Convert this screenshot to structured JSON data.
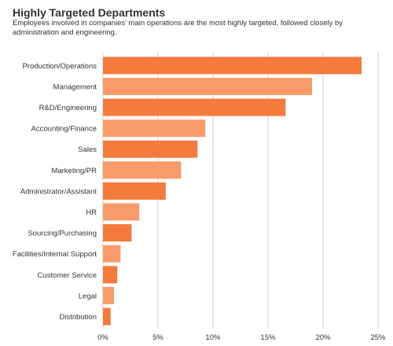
{
  "header": {
    "title": "Highly Targeted Departments",
    "subtitle": "Employees involved in companies' main operations are the most highly targeted, followed closely by administration and engineering."
  },
  "chart_data": {
    "type": "bar",
    "orientation": "horizontal",
    "categories": [
      "Production/Operations",
      "Management",
      "R&D/Engineering",
      "Accounting/Finance",
      "Sales",
      "Marketing/PR",
      "Administrator/Assistant",
      "HR",
      "Sourcing/Purchasing",
      "Facilities/Internal Support",
      "Customer Service",
      "Legal",
      "Distribution"
    ],
    "values": [
      23.5,
      19.0,
      16.6,
      9.3,
      8.6,
      7.1,
      5.7,
      3.3,
      2.6,
      1.6,
      1.3,
      1.0,
      0.7
    ],
    "xlim": [
      0,
      25
    ],
    "x_ticks": [
      "0%",
      "5%",
      "10%",
      "15%",
      "20%",
      "25%"
    ],
    "grid": "vertical",
    "colors": {
      "dark": "#F47B3B",
      "light": "#F89B6A",
      "grid": "#CFCFCF"
    }
  }
}
